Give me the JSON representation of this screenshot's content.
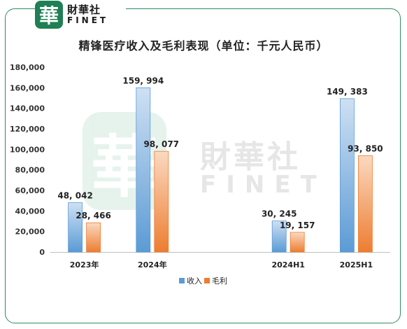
{
  "brand": {
    "logo_char": "華",
    "name_cn": "財華社",
    "name_en": "FINET"
  },
  "chart_data": {
    "type": "bar",
    "title": "精锋医疗收入及毛利表现（单位：千元人民币）",
    "categories": [
      "2023年",
      "2024年",
      "",
      "2024H1",
      "2025H1"
    ],
    "series": [
      {
        "name": "收入",
        "color": "#5b9bd5",
        "values": [
          48042,
          159994,
          null,
          30245,
          149383
        ]
      },
      {
        "name": "毛利",
        "color": "#ed7d31",
        "values": [
          28466,
          98077,
          null,
          19157,
          93850
        ]
      }
    ],
    "data_labels": {
      "收入": [
        "48, 042",
        "159, 994",
        "",
        "30, 245",
        "149, 383"
      ],
      "毛利": [
        "28, 466",
        "98, 077",
        "",
        "19, 157",
        "93, 850"
      ]
    },
    "y_ticks": [
      "0",
      "20,000",
      "40,000",
      "60,000",
      "80,000",
      "100,000",
      "120,000",
      "140,000",
      "160,000",
      "180,000"
    ],
    "ylim": [
      0,
      180000
    ],
    "xlabel": "",
    "ylabel": "",
    "grid": false,
    "legend": "bottom"
  }
}
